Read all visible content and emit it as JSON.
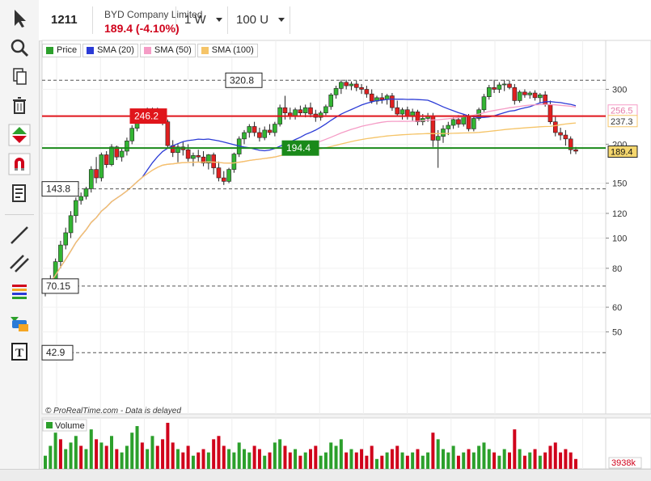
{
  "header": {
    "code": "1211",
    "company": "BYD Company Limited",
    "price": "189.4 (-4.10%)",
    "interval": "1 W",
    "units": "100 U"
  },
  "legend": [
    {
      "label": "Price",
      "color": "#2ca02c"
    },
    {
      "label": "SMA (20)",
      "color": "#2b3bd6"
    },
    {
      "label": "SMA (50)",
      "color": "#f59cc6"
    },
    {
      "label": "SMA (100)",
      "color": "#f5c468"
    }
  ],
  "toolbar": [
    "pointer-icon",
    "zoom-icon",
    "copy-icon",
    "trash-icon",
    "buy-sell-icon",
    "magnet-icon",
    "list-icon",
    "line-tool-icon",
    "parallel-lines-icon",
    "fibonacci-icon",
    "shapes-icon",
    "text-tool-icon"
  ],
  "levels": [
    {
      "value": "320.8",
      "price": 320.8,
      "color": "#555",
      "style": "dashed",
      "label_pos": "left"
    },
    {
      "value": "246.2",
      "price": 246.2,
      "color": "#e0151b",
      "style": "solid",
      "label_pos": "left"
    },
    {
      "value": "194.4",
      "price": 194.4,
      "color": "#1a8a1a",
      "style": "solid",
      "label_pos": "middle"
    },
    {
      "value": "143.8",
      "price": 143.8,
      "color": "#555",
      "style": "dashed",
      "label_pos": "left"
    },
    {
      "value": "70.15",
      "price": 70.15,
      "color": "#555",
      "style": "dashed",
      "label_pos": "left"
    },
    {
      "value": "42.9",
      "price": 42.9,
      "color": "#555",
      "style": "dashed",
      "label_pos": "left"
    }
  ],
  "axis_badges": [
    {
      "text": "256.5",
      "price": 256.5,
      "color": "#f59cc6"
    },
    {
      "text": "237.3",
      "price": 237.3,
      "color": "#f5c468"
    },
    {
      "text": "189.4",
      "price": 189.4,
      "color": "#222"
    }
  ],
  "watermark": "© ProRealTime.com - Data is delayed",
  "volume_label": "Volume",
  "volume_badge": "3938k",
  "chart_data": {
    "type": "candlestick",
    "y_axis": {
      "scale": "log",
      "ticks": [
        300,
        200,
        150,
        120,
        100,
        80,
        60,
        50
      ]
    },
    "ohlc": [
      [
        68,
        72,
        65,
        70
      ],
      [
        70,
        76,
        68,
        74
      ],
      [
        74,
        86,
        72,
        84
      ],
      [
        84,
        98,
        80,
        95
      ],
      [
        95,
        108,
        92,
        104
      ],
      [
        104,
        122,
        100,
        118
      ],
      [
        118,
        135,
        112,
        132
      ],
      [
        132,
        140,
        128,
        136
      ],
      [
        136,
        146,
        133,
        144
      ],
      [
        144,
        170,
        140,
        166
      ],
      [
        166,
        182,
        150,
        156
      ],
      [
        156,
        188,
        152,
        185
      ],
      [
        185,
        190,
        168,
        172
      ],
      [
        172,
        200,
        170,
        196
      ],
      [
        196,
        198,
        178,
        182
      ],
      [
        182,
        195,
        176,
        190
      ],
      [
        190,
        210,
        184,
        205
      ],
      [
        205,
        230,
        200,
        225
      ],
      [
        225,
        252,
        220,
        245
      ],
      [
        245,
        258,
        238,
        250
      ],
      [
        250,
        262,
        242,
        248
      ],
      [
        248,
        262,
        240,
        256
      ],
      [
        256,
        262,
        238,
        244
      ],
      [
        244,
        252,
        230,
        236
      ],
      [
        236,
        240,
        195,
        198
      ],
      [
        198,
        206,
        182,
        188
      ],
      [
        188,
        200,
        175,
        196
      ],
      [
        196,
        204,
        184,
        192
      ],
      [
        192,
        200,
        176,
        180
      ],
      [
        180,
        188,
        170,
        184
      ],
      [
        184,
        192,
        176,
        182
      ],
      [
        182,
        190,
        170,
        174
      ],
      [
        174,
        186,
        166,
        185
      ],
      [
        185,
        188,
        160,
        168
      ],
      [
        168,
        176,
        152,
        156
      ],
      [
        156,
        164,
        148,
        152
      ],
      [
        152,
        168,
        150,
        166
      ],
      [
        166,
        188,
        162,
        186
      ],
      [
        186,
        212,
        182,
        208
      ],
      [
        208,
        222,
        200,
        218
      ],
      [
        218,
        232,
        210,
        228
      ],
      [
        228,
        236,
        212,
        218
      ],
      [
        218,
        226,
        204,
        210
      ],
      [
        210,
        228,
        206,
        222
      ],
      [
        222,
        232,
        214,
        218
      ],
      [
        218,
        236,
        212,
        232
      ],
      [
        232,
        268,
        228,
        262
      ],
      [
        262,
        286,
        240,
        252
      ],
      [
        252,
        262,
        240,
        246
      ],
      [
        246,
        262,
        240,
        258
      ],
      [
        258,
        266,
        246,
        252
      ],
      [
        252,
        268,
        244,
        262
      ],
      [
        262,
        272,
        244,
        250
      ],
      [
        250,
        258,
        236,
        244
      ],
      [
        244,
        256,
        238,
        252
      ],
      [
        252,
        268,
        248,
        264
      ],
      [
        264,
        292,
        258,
        288
      ],
      [
        288,
        308,
        280,
        302
      ],
      [
        302,
        322,
        290,
        316
      ],
      [
        316,
        322,
        300,
        308
      ],
      [
        308,
        318,
        298,
        312
      ],
      [
        312,
        320,
        296,
        304
      ],
      [
        304,
        312,
        290,
        300
      ],
      [
        300,
        308,
        282,
        290
      ],
      [
        290,
        300,
        270,
        275
      ],
      [
        275,
        286,
        268,
        282
      ],
      [
        282,
        292,
        270,
        278
      ],
      [
        278,
        290,
        268,
        286
      ],
      [
        286,
        292,
        256,
        262
      ],
      [
        262,
        276,
        246,
        250
      ],
      [
        250,
        262,
        240,
        258
      ],
      [
        258,
        264,
        240,
        246
      ],
      [
        246,
        260,
        238,
        254
      ],
      [
        254,
        258,
        230,
        236
      ],
      [
        236,
        250,
        230,
        242
      ],
      [
        242,
        252,
        236,
        246
      ],
      [
        246,
        252,
        196,
        206
      ],
      [
        206,
        222,
        168,
        212
      ],
      [
        212,
        230,
        202,
        224
      ],
      [
        224,
        236,
        214,
        230
      ],
      [
        230,
        244,
        224,
        240
      ],
      [
        240,
        248,
        226,
        232
      ],
      [
        232,
        250,
        228,
        246
      ],
      [
        246,
        250,
        220,
        224
      ],
      [
        224,
        246,
        220,
        242
      ],
      [
        242,
        262,
        238,
        258
      ],
      [
        258,
        290,
        254,
        284
      ],
      [
        284,
        310,
        278,
        304
      ],
      [
        304,
        322,
        292,
        300
      ],
      [
        300,
        316,
        292,
        310
      ],
      [
        310,
        322,
        296,
        312
      ],
      [
        312,
        320,
        300,
        304
      ],
      [
        304,
        312,
        268,
        276
      ],
      [
        276,
        298,
        272,
        294
      ],
      [
        294,
        300,
        282,
        288
      ],
      [
        288,
        296,
        280,
        292
      ],
      [
        292,
        298,
        276,
        282
      ],
      [
        282,
        292,
        272,
        288
      ],
      [
        288,
        296,
        264,
        268
      ],
      [
        268,
        276,
        232,
        236
      ],
      [
        236,
        246,
        212,
        218
      ],
      [
        218,
        226,
        206,
        214
      ],
      [
        214,
        222,
        198,
        208
      ],
      [
        208,
        212,
        186,
        192
      ],
      [
        192,
        196,
        186,
        190
      ]
    ],
    "volume": [
      [
        4,
        "u"
      ],
      [
        7,
        "u"
      ],
      [
        11,
        "u"
      ],
      [
        9,
        "d"
      ],
      [
        6,
        "u"
      ],
      [
        8,
        "u"
      ],
      [
        10,
        "u"
      ],
      [
        7,
        "d"
      ],
      [
        6,
        "u"
      ],
      [
        12,
        "u"
      ],
      [
        9,
        "d"
      ],
      [
        8,
        "u"
      ],
      [
        7,
        "d"
      ],
      [
        10,
        "u"
      ],
      [
        6,
        "d"
      ],
      [
        5,
        "u"
      ],
      [
        7,
        "u"
      ],
      [
        11,
        "u"
      ],
      [
        13,
        "u"
      ],
      [
        8,
        "d"
      ],
      [
        6,
        "u"
      ],
      [
        10,
        "u"
      ],
      [
        7,
        "d"
      ],
      [
        9,
        "d"
      ],
      [
        14,
        "d"
      ],
      [
        8,
        "d"
      ],
      [
        6,
        "u"
      ],
      [
        5,
        "d"
      ],
      [
        7,
        "d"
      ],
      [
        4,
        "u"
      ],
      [
        5,
        "d"
      ],
      [
        6,
        "d"
      ],
      [
        5,
        "u"
      ],
      [
        9,
        "d"
      ],
      [
        10,
        "d"
      ],
      [
        7,
        "d"
      ],
      [
        6,
        "u"
      ],
      [
        5,
        "u"
      ],
      [
        8,
        "u"
      ],
      [
        6,
        "u"
      ],
      [
        5,
        "u"
      ],
      [
        7,
        "d"
      ],
      [
        6,
        "d"
      ],
      [
        4,
        "u"
      ],
      [
        5,
        "d"
      ],
      [
        8,
        "u"
      ],
      [
        9,
        "u"
      ],
      [
        7,
        "d"
      ],
      [
        5,
        "d"
      ],
      [
        6,
        "u"
      ],
      [
        4,
        "d"
      ],
      [
        5,
        "u"
      ],
      [
        6,
        "d"
      ],
      [
        7,
        "d"
      ],
      [
        4,
        "u"
      ],
      [
        5,
        "u"
      ],
      [
        8,
        "u"
      ],
      [
        7,
        "u"
      ],
      [
        9,
        "u"
      ],
      [
        5,
        "d"
      ],
      [
        6,
        "u"
      ],
      [
        5,
        "d"
      ],
      [
        6,
        "d"
      ],
      [
        4,
        "d"
      ],
      [
        7,
        "d"
      ],
      [
        3,
        "u"
      ],
      [
        4,
        "d"
      ],
      [
        5,
        "u"
      ],
      [
        6,
        "d"
      ],
      [
        7,
        "d"
      ],
      [
        5,
        "u"
      ],
      [
        4,
        "d"
      ],
      [
        5,
        "u"
      ],
      [
        6,
        "d"
      ],
      [
        4,
        "u"
      ],
      [
        5,
        "u"
      ],
      [
        11,
        "d"
      ],
      [
        9,
        "u"
      ],
      [
        6,
        "u"
      ],
      [
        5,
        "u"
      ],
      [
        7,
        "u"
      ],
      [
        4,
        "d"
      ],
      [
        5,
        "u"
      ],
      [
        6,
        "d"
      ],
      [
        5,
        "u"
      ],
      [
        7,
        "u"
      ],
      [
        8,
        "u"
      ],
      [
        6,
        "u"
      ],
      [
        5,
        "d"
      ],
      [
        4,
        "u"
      ],
      [
        6,
        "u"
      ],
      [
        5,
        "d"
      ],
      [
        12,
        "d"
      ],
      [
        6,
        "u"
      ],
      [
        4,
        "d"
      ],
      [
        5,
        "u"
      ],
      [
        6,
        "d"
      ],
      [
        4,
        "u"
      ],
      [
        5,
        "d"
      ],
      [
        7,
        "d"
      ],
      [
        8,
        "d"
      ],
      [
        5,
        "d"
      ],
      [
        6,
        "d"
      ],
      [
        5,
        "d"
      ],
      [
        3,
        "d"
      ]
    ]
  }
}
